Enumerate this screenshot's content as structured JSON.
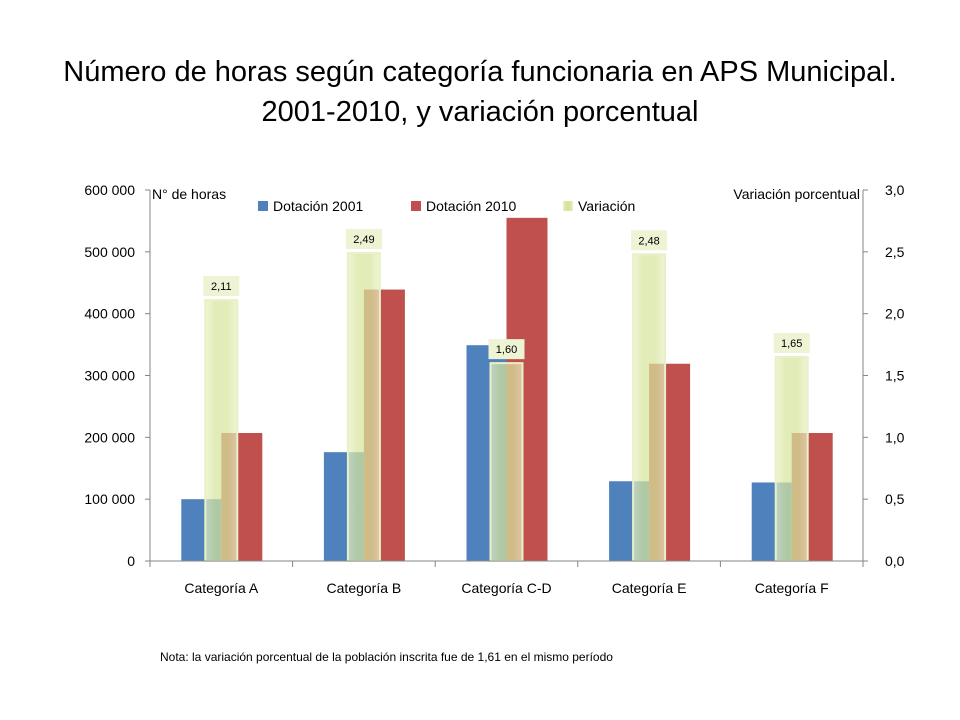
{
  "title": {
    "line1": "Número de horas según categoría funcionaria en APS Municipal.",
    "line2": "2001-2010, y variación porcentual"
  },
  "note": "Nota: la variación porcentual de la población inscrita fue de 1,61 en el mismo período",
  "chart_data": {
    "type": "bar",
    "categories": [
      "Categoría A",
      "Categoría B",
      "Categoría C-D",
      "Categoría E",
      "Categoría F"
    ],
    "series": [
      {
        "name": "Dotación 2001",
        "axis": "left",
        "values": [
          100000,
          176000,
          349000,
          129000,
          127000
        ],
        "color": "#4F81BD"
      },
      {
        "name": "Dotación 2010",
        "axis": "left",
        "values": [
          207000,
          439000,
          555000,
          319000,
          207000
        ],
        "color": "#C0504D"
      },
      {
        "name": "Variación",
        "axis": "right",
        "values": [
          2.11,
          2.49,
          1.6,
          2.48,
          1.65
        ],
        "color": "#D7E4A0"
      }
    ],
    "data_labels": [
      "2,11",
      "2,49",
      "1,60",
      "2,48",
      "1,65"
    ],
    "ylabel": "N° de horas",
    "ylabel_right": "Variación porcentual",
    "ylim": [
      0,
      600000
    ],
    "ylim_right": [
      0,
      3.0
    ],
    "yticks": [
      "0",
      "100 000",
      "200 000",
      "300 000",
      "400 000",
      "500 000",
      "600 000"
    ],
    "yticks_right": [
      "0,0",
      "0,5",
      "1,0",
      "1,5",
      "2,0",
      "2,5",
      "3,0"
    ],
    "legend": "top",
    "grid": false
  }
}
